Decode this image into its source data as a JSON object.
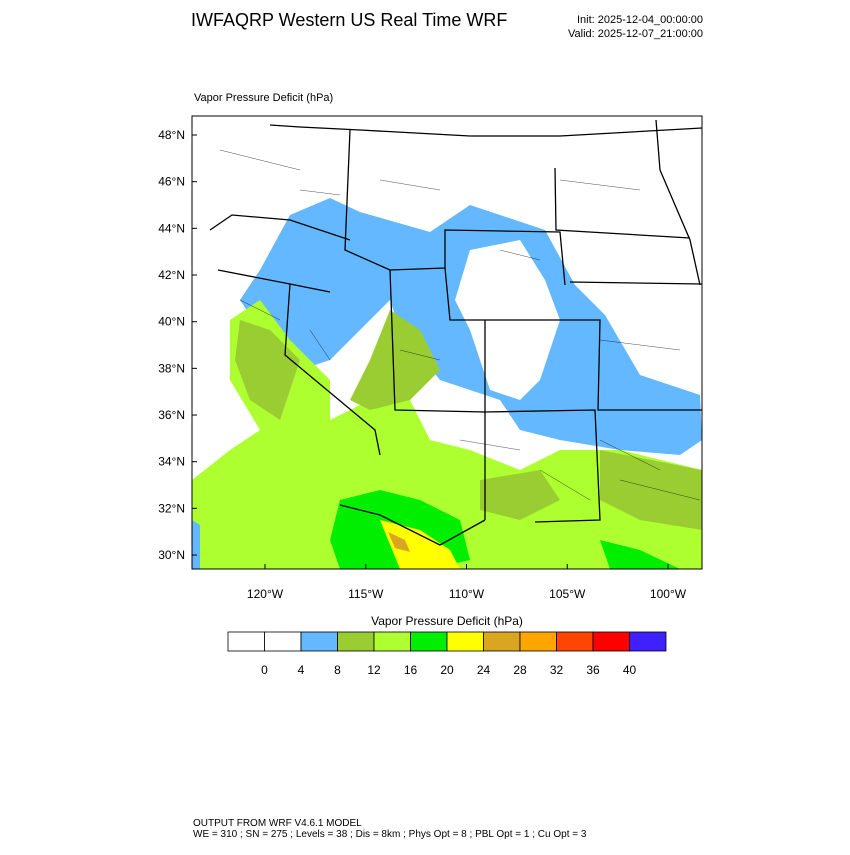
{
  "header": {
    "title": "IWFAQRP Western US Real Time WRF",
    "init": "Init: 2025-12-04_00:00:00",
    "valid": "Valid: 2025-12-07_21:00:00"
  },
  "map": {
    "field_label": "Vapor Pressure Deficit   (hPa)",
    "lat_labels": [
      "48°N",
      "46°N",
      "44°N",
      "42°N",
      "40°N",
      "38°N",
      "36°N",
      "34°N",
      "32°N",
      "30°N"
    ],
    "lon_labels": [
      "120°W",
      "115°W",
      "110°W",
      "105°W",
      "100°W"
    ]
  },
  "colorbar": {
    "title": "Vapor Pressure Deficit  (hPa)",
    "colors": [
      "#ffffff",
      "#ffffff",
      "#63b8ff",
      "#9acd32",
      "#adff2f",
      "#00ee00",
      "#ffff00",
      "#daa520",
      "#ffa500",
      "#ff4500",
      "#ff0000",
      "#4020ff"
    ],
    "labels": [
      "0",
      "4",
      "8",
      "12",
      "16",
      "20",
      "24",
      "28",
      "32",
      "36",
      "40"
    ]
  },
  "footer": {
    "lines": [
      "OUTPUT FROM WRF V4.6.1 MODEL",
      "WE = 310 ; SN = 275 ; Levels = 38 ; Dis = 8km ; Phys Opt = 8 ; PBL Opt = 1 ; Cu Opt = 3"
    ]
  }
}
